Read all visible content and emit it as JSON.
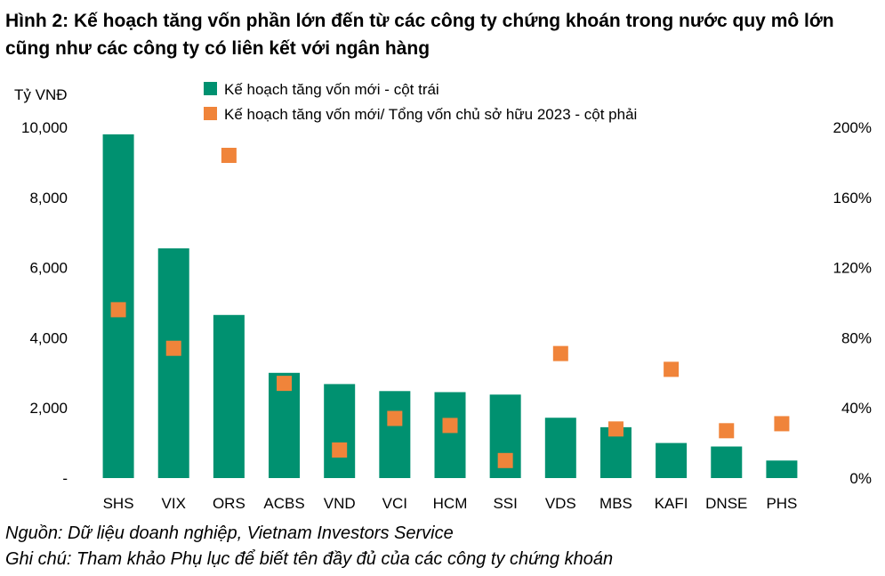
{
  "title": "Hình 2: Kế hoạch tăng vốn phần lớn đến từ các công ty chứng khoán trong nước quy mô lớn cũng như các công ty có liên kết với ngân hàng",
  "footer": {
    "source": "Nguồn: Dữ liệu doanh nghiệp, Vietnam Investors Service",
    "note": "Ghi chú: Tham khảo Phụ lục để biết tên đầy đủ của các công ty chứng khoán"
  },
  "colors": {
    "bar": "#009170",
    "marker": "#F0843A"
  },
  "chart_data": {
    "type": "bar",
    "ylabel": "Tỷ VNĐ",
    "categories": [
      "SHS",
      "VIX",
      "ORS",
      "ACBS",
      "VND",
      "VCI",
      "HCM",
      "SSI",
      "VDS",
      "MBS",
      "KAFI",
      "DNSE",
      "PHS"
    ],
    "y_left": {
      "ylim": [
        0,
        10000
      ],
      "ticks": [
        0,
        2000,
        4000,
        6000,
        8000,
        10000
      ],
      "tick_labels": [
        "-",
        "2,000",
        "4,000",
        "6,000",
        "8,000",
        "10,000"
      ]
    },
    "y_right": {
      "ylim": [
        0,
        2.0
      ],
      "ticks": [
        0,
        0.4,
        0.8,
        1.2,
        1.6,
        2.0
      ],
      "tick_labels": [
        "0%",
        "40%",
        "80%",
        "120%",
        "160%",
        "200%"
      ]
    },
    "legend_position": "top-center",
    "series": [
      {
        "name": "Kế hoạch tăng vốn mới - cột trái",
        "type": "bar",
        "axis": "left",
        "values": [
          9800,
          6550,
          4650,
          3000,
          2680,
          2480,
          2450,
          2380,
          1720,
          1450,
          1000,
          900,
          500
        ]
      },
      {
        "name": "Kế hoạch tăng vốn mới/ Tổng vốn chủ sở hữu 2023 - cột phải",
        "type": "scatter",
        "axis": "right",
        "values": [
          0.96,
          0.74,
          1.84,
          0.54,
          0.16,
          0.34,
          0.3,
          0.1,
          0.71,
          0.28,
          0.62,
          0.27,
          0.31
        ]
      }
    ]
  }
}
